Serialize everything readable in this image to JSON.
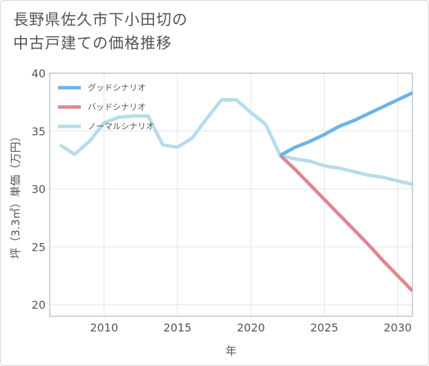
{
  "title_line1": "長野県佐久市下小田切の",
  "title_line2": "中古戸建ての価格推移",
  "chart_data": {
    "type": "line",
    "xlabel": "年",
    "ylabel": "坪（3.3㎡）単価（万円）",
    "xlim": [
      2006.3,
      2031
    ],
    "ylim": [
      19,
      40
    ],
    "x_ticks": [
      2010,
      2015,
      2020,
      2025,
      2030
    ],
    "y_ticks": [
      20,
      25,
      30,
      35,
      40
    ],
    "grid": true,
    "legend_position": "top-left",
    "series": [
      {
        "name": "グッドシナリオ",
        "color": "#6cb4e8",
        "x": [
          2022,
          2023,
          2024,
          2025,
          2026,
          2027,
          2028,
          2029,
          2030,
          2031
        ],
        "y": [
          32.9,
          33.6,
          34.1,
          34.7,
          35.4,
          35.9,
          36.5,
          37.1,
          37.7,
          38.3
        ]
      },
      {
        "name": "バッドシナリオ",
        "color": "#e0868f",
        "x": [
          2022,
          2023,
          2024,
          2025,
          2026,
          2027,
          2028,
          2029,
          2030,
          2031
        ],
        "y": [
          32.9,
          31.7,
          30.4,
          29.1,
          27.8,
          26.5,
          25.2,
          23.8,
          22.5,
          21.2
        ]
      },
      {
        "name": "ノーマルシナリオ",
        "color": "#b7dcec",
        "x": [
          2007,
          2008,
          2009,
          2010,
          2011,
          2012,
          2013,
          2014,
          2015,
          2016,
          2017,
          2018,
          2019,
          2020,
          2021,
          2022,
          2023,
          2024,
          2025,
          2026,
          2027,
          2028,
          2029,
          2030,
          2031
        ],
        "y": [
          33.8,
          33.0,
          34.1,
          35.7,
          36.2,
          36.3,
          36.3,
          33.8,
          33.6,
          34.4,
          36.1,
          37.7,
          37.7,
          36.6,
          35.6,
          32.9,
          32.6,
          32.4,
          32.0,
          31.8,
          31.5,
          31.2,
          31.0,
          30.7,
          30.4
        ]
      }
    ]
  }
}
